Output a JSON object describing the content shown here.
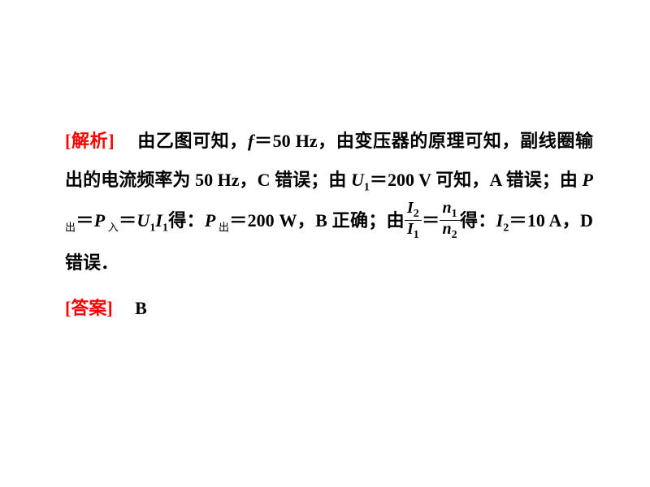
{
  "doc": {
    "text_color": "#000000",
    "accent_color": "#ff0000",
    "background": "#ffffff",
    "font_family": "SimSun",
    "font_size_pt": 16,
    "line_height": 2.2,
    "analysis": {
      "label": "[解析]",
      "t1": "由乙图可知，",
      "f": "f",
      "eq1": "＝50 Hz",
      "t2": "，由变压器的原理可知，副线圈输出的电流频率为 50 Hz，C 错误；由 ",
      "U1": "U",
      "sub1": "1",
      "eq2": "＝200 V ",
      "t3": "可知，A 错误；由 ",
      "P": "P",
      "sub_out": "出",
      "eq": "＝",
      "sub_in": "入",
      "I1": "I",
      "t4": "得：",
      "eq3": "＝200 W",
      "t5": "，B 正确；由",
      "I2": "I",
      "sub2": "2",
      "n": "n",
      "eq4": "＝10 A",
      "t6": "，D 错误．"
    },
    "answer": {
      "label": "[答案]",
      "value": "B"
    }
  }
}
